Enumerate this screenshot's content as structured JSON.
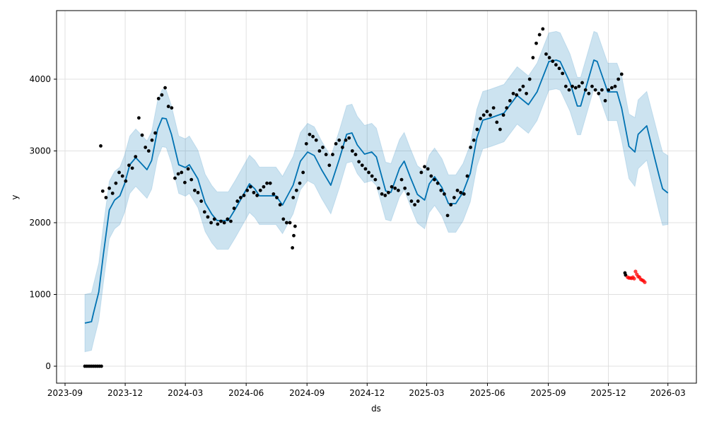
{
  "chart_data": {
    "type": "line",
    "title": "",
    "xlabel": "ds",
    "ylabel": "y",
    "x_ticks": [
      "2023-09",
      "2023-12",
      "2024-03",
      "2024-06",
      "2024-09",
      "2024-12",
      "2025-03",
      "2025-06",
      "2025-09",
      "2025-12",
      "2026-03"
    ],
    "y_ticks": [
      0,
      1000,
      2000,
      3000,
      4000
    ],
    "xlim": [
      "2023-08-19",
      "2026-03-44"
    ],
    "ylim": [
      -230,
      4870
    ],
    "grid": true,
    "colors": {
      "forecast": "#0072B2",
      "interval": "#0072B2",
      "observed": "#000000",
      "test": "#ff0000"
    },
    "forecast_columns": [
      "ds",
      "yhat",
      "yhat_lower",
      "yhat_upper"
    ],
    "forecast": [
      [
        "2023-10-01",
        601,
        201,
        1001
      ],
      [
        "2023-10-11",
        621,
        221,
        1021
      ],
      [
        "2023-10-14",
        739,
        339,
        1139
      ],
      [
        "2023-10-22",
        1034,
        634,
        1434
      ],
      [
        "2023-10-29",
        1557,
        1157,
        1957
      ],
      [
        "2023-11-07",
        2177,
        1777,
        2577
      ],
      [
        "2023-11-15",
        2315,
        1915,
        2715
      ],
      [
        "2023-11-23",
        2374,
        1974,
        2774
      ],
      [
        "2023-11-30",
        2542,
        2142,
        2942
      ],
      [
        "2023-12-08",
        2808,
        2408,
        3208
      ],
      [
        "2023-12-17",
        2906,
        2506,
        3306
      ],
      [
        "2023-12-24",
        2837,
        2437,
        3237
      ],
      [
        "2024-01-03",
        2739,
        2339,
        3139
      ],
      [
        "2024-01-10",
        2867,
        2467,
        3267
      ],
      [
        "2024-01-19",
        3300,
        2900,
        3700
      ],
      [
        "2024-01-26",
        3458,
        3058,
        3858
      ],
      [
        "2024-02-01",
        3448,
        3048,
        3848
      ],
      [
        "2024-02-09",
        3232,
        2832,
        3632
      ],
      [
        "2024-02-20",
        2808,
        2408,
        3208
      ],
      [
        "2024-03-01",
        2768,
        2368,
        3168
      ],
      [
        "2024-03-07",
        2808,
        2408,
        3208
      ],
      [
        "2024-03-20",
        2611,
        2211,
        3011
      ],
      [
        "2024-03-31",
        2276,
        1876,
        2676
      ],
      [
        "2024-04-10",
        2118,
        1718,
        2518
      ],
      [
        "2024-04-18",
        2030,
        1630,
        2430
      ],
      [
        "2024-05-05",
        2030,
        1630,
        2430
      ],
      [
        "2024-05-16",
        2197,
        1797,
        2597
      ],
      [
        "2024-05-31",
        2443,
        2043,
        2843
      ],
      [
        "2024-06-06",
        2542,
        2142,
        2942
      ],
      [
        "2024-06-14",
        2473,
        2073,
        2873
      ],
      [
        "2024-06-21",
        2374,
        1974,
        2774
      ],
      [
        "2024-07-05",
        2374,
        1974,
        2774
      ],
      [
        "2024-07-16",
        2374,
        1974,
        2774
      ],
      [
        "2024-07-26",
        2246,
        1846,
        2646
      ],
      [
        "2024-08-11",
        2522,
        2122,
        2922
      ],
      [
        "2024-08-22",
        2857,
        2457,
        3257
      ],
      [
        "2024-09-02",
        2985,
        2585,
        3385
      ],
      [
        "2024-09-12",
        2936,
        2536,
        3336
      ],
      [
        "2024-09-23",
        2739,
        2339,
        3139
      ],
      [
        "2024-10-07",
        2522,
        2122,
        2922
      ],
      [
        "2024-10-20",
        2887,
        2487,
        3287
      ],
      [
        "2024-10-31",
        3232,
        2832,
        3632
      ],
      [
        "2024-11-08",
        3251,
        2851,
        3651
      ],
      [
        "2024-11-16",
        3084,
        2684,
        3484
      ],
      [
        "2024-11-27",
        2956,
        2556,
        3356
      ],
      [
        "2024-12-08",
        2985,
        2585,
        3385
      ],
      [
        "2024-12-15",
        2916,
        2516,
        3316
      ],
      [
        "2024-12-29",
        2443,
        2043,
        2843
      ],
      [
        "2025-01-06",
        2424,
        2024,
        2824
      ],
      [
        "2025-01-19",
        2759,
        2359,
        3159
      ],
      [
        "2025-01-26",
        2857,
        2457,
        3257
      ],
      [
        "2025-02-04",
        2640,
        2240,
        3040
      ],
      [
        "2025-02-15",
        2394,
        1994,
        2794
      ],
      [
        "2025-02-26",
        2315,
        1915,
        2715
      ],
      [
        "2025-03-05",
        2542,
        2142,
        2942
      ],
      [
        "2025-03-13",
        2640,
        2240,
        3040
      ],
      [
        "2025-03-24",
        2493,
        2093,
        2893
      ],
      [
        "2025-04-03",
        2266,
        1866,
        2666
      ],
      [
        "2025-04-14",
        2266,
        1866,
        2666
      ],
      [
        "2025-04-25",
        2424,
        2024,
        2824
      ],
      [
        "2025-05-06",
        2690,
        2290,
        3090
      ],
      [
        "2025-05-16",
        3182,
        2782,
        3582
      ],
      [
        "2025-05-25",
        3429,
        3029,
        3829
      ],
      [
        "2025-06-05",
        3458,
        3058,
        3858
      ],
      [
        "2025-06-26",
        3527,
        3127,
        3927
      ],
      [
        "2025-07-16",
        3773,
        3373,
        4173
      ],
      [
        "2025-08-02",
        3645,
        3245,
        4045
      ],
      [
        "2025-08-15",
        3823,
        3423,
        4223
      ],
      [
        "2025-09-02",
        4246,
        3846,
        4646
      ],
      [
        "2025-09-13",
        4266,
        3866,
        4666
      ],
      [
        "2025-09-19",
        4246,
        3846,
        4646
      ],
      [
        "2025-10-04",
        3951,
        3551,
        4351
      ],
      [
        "2025-10-15",
        3626,
        3226,
        4026
      ],
      [
        "2025-10-20",
        3626,
        3226,
        4026
      ],
      [
        "2025-11-09",
        4266,
        3866,
        4666
      ],
      [
        "2025-11-14",
        4246,
        3846,
        4646
      ],
      [
        "2025-11-30",
        3823,
        3423,
        4223
      ],
      [
        "2025-12-14",
        3823,
        3423,
        4223
      ],
      [
        "2025-12-21",
        3596,
        3146,
        4046
      ],
      [
        "2026-01-01",
        3064,
        2614,
        3514
      ],
      [
        "2026-01-10",
        2985,
        2505,
        3465
      ],
      [
        "2026-01-15",
        3232,
        2752,
        3712
      ],
      [
        "2026-01-28",
        3350,
        2870,
        3830
      ],
      [
        "2026-02-08",
        2936,
        2436,
        3436
      ],
      [
        "2026-02-16",
        2640,
        2130,
        3150
      ],
      [
        "2026-02-21",
        2473,
        1963,
        2983
      ],
      [
        "2026-03-01",
        2414,
        1974,
        2934
      ]
    ],
    "observed_zero_segment": {
      "start": "2023-10-01",
      "end": "2023-10-26",
      "values": [
        0,
        0,
        0,
        0,
        0,
        0,
        0,
        0,
        0
      ]
    },
    "observed_outliers": [
      [
        "2023-10-25",
        3070
      ],
      [
        "2024-08-10",
        1650
      ],
      [
        "2024-08-12",
        1820
      ],
      [
        "2024-08-14",
        1950
      ],
      [
        "2025-12-26",
        1300
      ],
      [
        "2025-12-27",
        1270
      ]
    ],
    "observed_main_segment": {
      "start": "2023-10-28",
      "end": "2025-12-21",
      "values": [
        2440,
        2350,
        2480,
        2410,
        2550,
        2700,
        2650,
        2580,
        2800,
        2760,
        2920,
        3460,
        3220,
        3050,
        3000,
        3150,
        3250,
        3730,
        3780,
        3880,
        3620,
        3600,
        2620,
        2680,
        2700,
        2560,
        2750,
        2600,
        2450,
        2420,
        2300,
        2150,
        2080,
        2000,
        2050,
        1980,
        2020,
        2000,
        2050,
        2020,
        2200,
        2300,
        2350,
        2380,
        2450,
        2500,
        2420,
        2380,
        2450,
        2500,
        2550,
        2550,
        2400,
        2350,
        2250,
        2050,
        2000,
        2000,
        2350,
        2450,
        2550,
        2700,
        3100,
        3230,
        3200,
        3150,
        3000,
        3050,
        2950,
        2800,
        2950,
        3100,
        3150,
        3050,
        3150,
        3180,
        3000,
        2950,
        2850,
        2800,
        2750,
        2700,
        2650,
        2600,
        2480,
        2400,
        2380,
        2420,
        2500,
        2480,
        2450,
        2600,
        2480,
        2400,
        2300,
        2250,
        2300,
        2700,
        2780,
        2750,
        2650,
        2600,
        2550,
        2450,
        2400,
        2100,
        2250,
        2350,
        2450,
        2420,
        2400,
        2650,
        3050,
        3150,
        3300,
        3450,
        3500,
        3550,
        3500,
        3600,
        3400,
        3300,
        3500,
        3600,
        3700,
        3800,
        3780,
        3850,
        3900,
        3800,
        4000,
        4300,
        4500,
        4620,
        4700,
        4350,
        4300,
        4250,
        4200,
        4150,
        4080,
        3900,
        3850,
        3900,
        3880,
        3900,
        3950,
        3850,
        3800,
        3900,
        3850,
        3800,
        3850,
        3700,
        3850,
        3880,
        3900,
        4000,
        4070
      ]
    },
    "test_points": [
      [
        "2025-12-30",
        1240
      ],
      [
        "2026-01-01",
        1230
      ],
      [
        "2026-01-03",
        1230
      ],
      [
        "2026-01-05",
        1225
      ],
      [
        "2026-01-07",
        1240
      ],
      [
        "2026-01-09",
        1220
      ],
      [
        "2026-01-11",
        1320
      ],
      [
        "2026-01-13",
        1280
      ],
      [
        "2026-01-15",
        1250
      ],
      [
        "2026-01-17",
        1240
      ],
      [
        "2026-01-19",
        1210
      ],
      [
        "2026-01-21",
        1200
      ],
      [
        "2026-01-23",
        1190
      ],
      [
        "2026-01-25",
        1170
      ]
    ]
  }
}
